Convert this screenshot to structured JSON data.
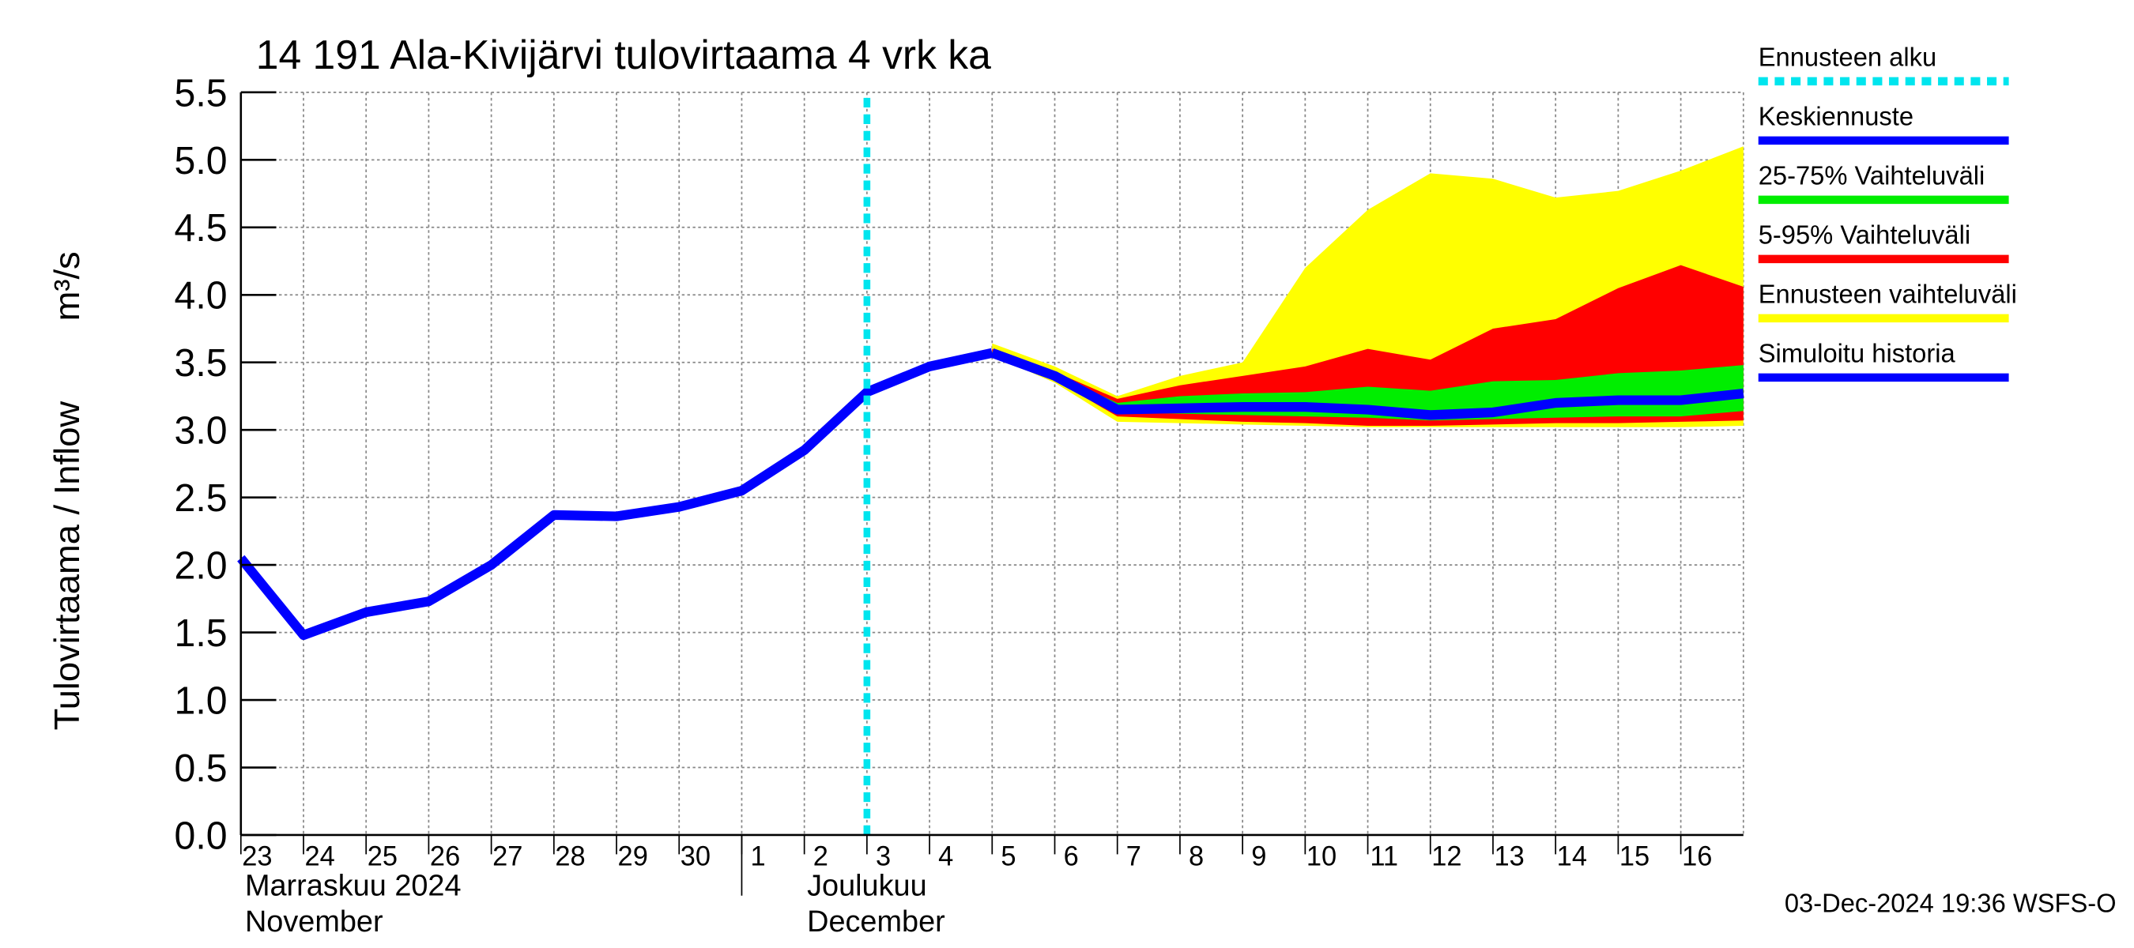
{
  "chart_data": {
    "type": "forecast",
    "title": "14 191 Ala-Kivijärvi tulovirtaama 4 vrk ka",
    "ylabel": [
      "Tulovirtaama / Inflow",
      "m³/s"
    ],
    "months": [
      [
        "Marraskuu 2024",
        "November"
      ],
      [
        "Joulukuu",
        "December"
      ]
    ],
    "footer": "03-Dec-2024 19:36 WSFS-O",
    "xlim": [
      0,
      24
    ],
    "xticks": [
      {
        "value": 0,
        "label": "23"
      },
      {
        "value": 1,
        "label": "24"
      },
      {
        "value": 2,
        "label": "25"
      },
      {
        "value": 3,
        "label": "26"
      },
      {
        "value": 4,
        "label": "27"
      },
      {
        "value": 5,
        "label": "28"
      },
      {
        "value": 6,
        "label": "29"
      },
      {
        "value": 7,
        "label": "30"
      },
      {
        "value": 8,
        "label": "1"
      },
      {
        "value": 9,
        "label": "2"
      },
      {
        "value": 10,
        "label": "3"
      },
      {
        "value": 11,
        "label": "4"
      },
      {
        "value": 12,
        "label": "5"
      },
      {
        "value": 13,
        "label": "6"
      },
      {
        "value": 14,
        "label": "7"
      },
      {
        "value": 15,
        "label": "8"
      },
      {
        "value": 16,
        "label": "9"
      },
      {
        "value": 17,
        "label": "10"
      },
      {
        "value": 18,
        "label": "11"
      },
      {
        "value": 19,
        "label": "12"
      },
      {
        "value": 20,
        "label": "13"
      },
      {
        "value": 21,
        "label": "14"
      },
      {
        "value": 22,
        "label": "15"
      },
      {
        "value": 23,
        "label": "16"
      }
    ],
    "ylim": [
      0,
      5.5
    ],
    "yticks": [
      {
        "value": 0,
        "label": "0.0"
      },
      0.5,
      {
        "value": 1,
        "label": "1.0"
      },
      1.5,
      {
        "value": 2,
        "label": "2.0"
      },
      2.5,
      {
        "value": 3,
        "label": "3.0"
      },
      3.5,
      {
        "value": 4,
        "label": "4.0"
      },
      4.5,
      {
        "value": 5,
        "label": "5.0"
      },
      5.5
    ],
    "grid": true,
    "series": [
      {
        "name": "Ennusteen alku",
        "kind": "vline",
        "color": "#00e5ee",
        "x": 10
      },
      {
        "name": "Keskiennuste",
        "kind": "line",
        "color": "#0000ff",
        "x": [
          12,
          13,
          14,
          15,
          16,
          17,
          18,
          19,
          20,
          21,
          22,
          23,
          24
        ],
        "values": [
          3.57,
          3.4,
          3.15,
          3.16,
          3.17,
          3.17,
          3.15,
          3.11,
          3.13,
          3.2,
          3.22,
          3.22,
          3.27
        ]
      },
      {
        "name": "25-75% Vaihteluväli",
        "kind": "band",
        "color": "#00ee00",
        "x": [
          12,
          13,
          14,
          15,
          16,
          17,
          18,
          19,
          20,
          21,
          22,
          23,
          24
        ],
        "low": [
          3.57,
          3.39,
          3.13,
          3.12,
          3.11,
          3.1,
          3.09,
          3.07,
          3.08,
          3.09,
          3.1,
          3.1,
          3.14
        ],
        "high": [
          3.58,
          3.41,
          3.2,
          3.25,
          3.27,
          3.28,
          3.32,
          3.29,
          3.36,
          3.37,
          3.42,
          3.44,
          3.48
        ]
      },
      {
        "name": "5-95% Vaihteluväli",
        "kind": "band",
        "color": "#ff0000",
        "x": [
          12,
          13,
          14,
          15,
          16,
          17,
          18,
          19,
          20,
          21,
          22,
          23,
          24
        ],
        "low": [
          3.56,
          3.37,
          3.1,
          3.08,
          3.06,
          3.05,
          3.03,
          3.03,
          3.04,
          3.05,
          3.05,
          3.06,
          3.07
        ],
        "high": [
          3.6,
          3.43,
          3.23,
          3.33,
          3.4,
          3.47,
          3.6,
          3.52,
          3.75,
          3.82,
          4.05,
          4.22,
          4.06
        ]
      },
      {
        "name": "Ennusteen vaihteluväli",
        "kind": "band",
        "color": "#ffff00",
        "x": [
          12,
          13,
          14,
          15,
          16,
          17,
          18,
          19,
          20,
          21,
          22,
          23,
          24
        ],
        "low": [
          3.55,
          3.35,
          3.06,
          3.05,
          3.04,
          3.03,
          3.02,
          3.02,
          3.02,
          3.02,
          3.02,
          3.02,
          3.03
        ],
        "high": [
          3.64,
          3.47,
          3.25,
          3.4,
          3.5,
          4.2,
          4.63,
          4.9,
          4.86,
          4.72,
          4.77,
          4.92,
          5.1
        ]
      },
      {
        "name": "Simuloitu historia",
        "kind": "line",
        "color": "#0000ff",
        "x": [
          0,
          1,
          2,
          3,
          4,
          5,
          6,
          7,
          8,
          9,
          10,
          11,
          12
        ],
        "values": [
          2.05,
          1.48,
          1.65,
          1.73,
          2.0,
          2.37,
          2.36,
          2.43,
          2.55,
          2.85,
          3.28,
          3.47,
          3.57
        ]
      }
    ]
  }
}
